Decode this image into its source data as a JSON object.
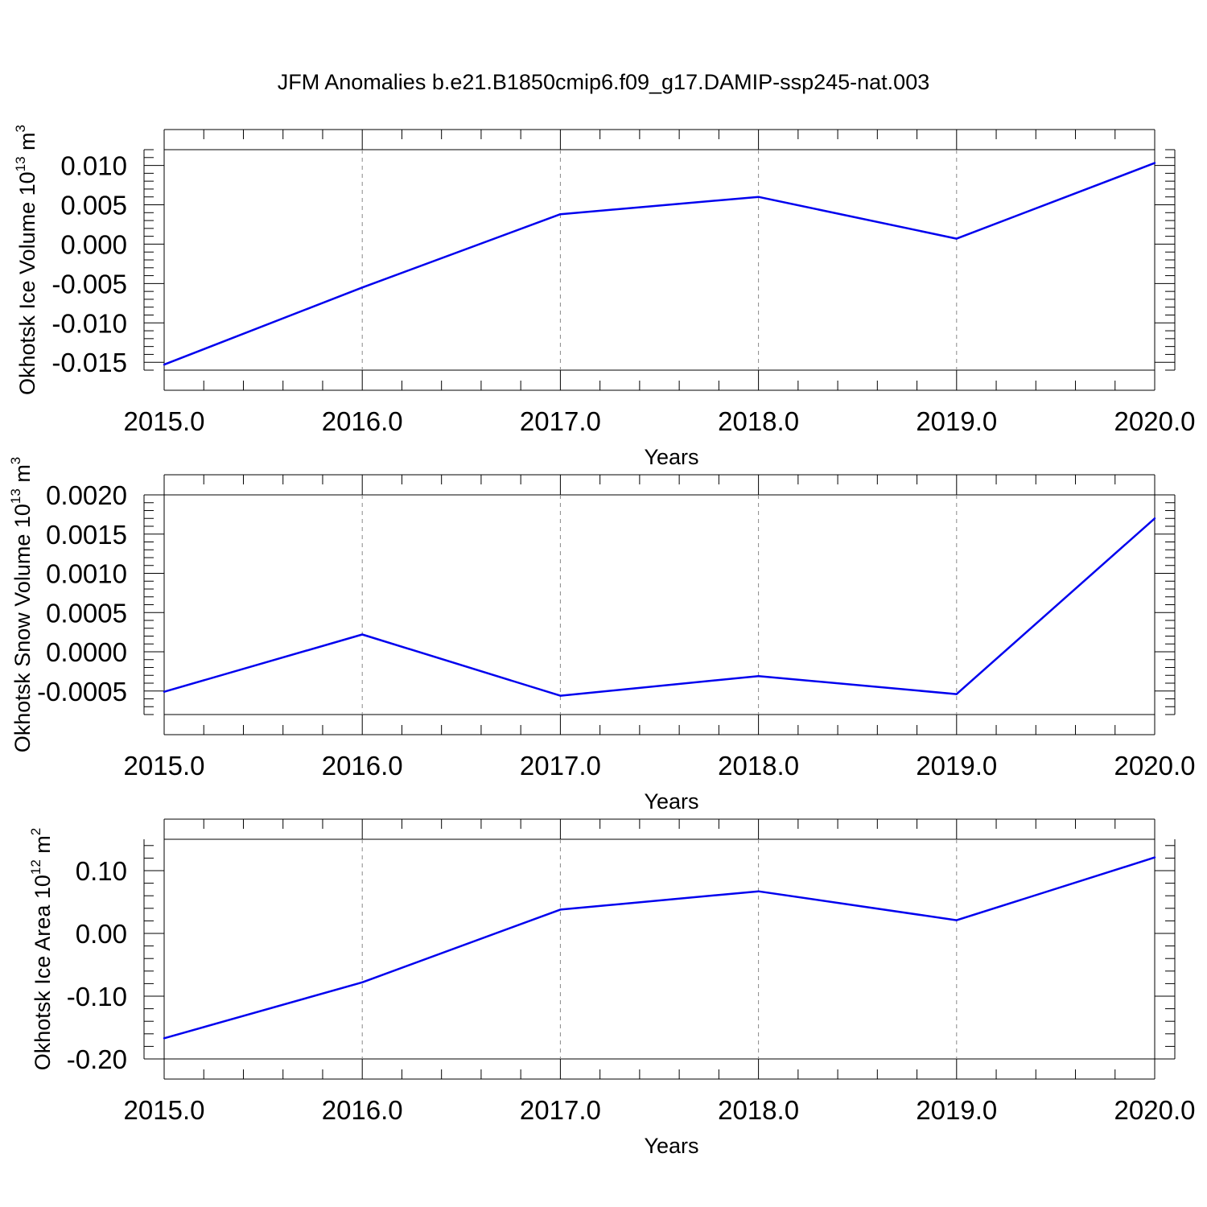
{
  "chart_data": [
    {
      "type": "line",
      "title": "JFM Anomalies b.e21.B1850cmip6.f09_g17.DAMIP-ssp245-nat.003",
      "xlabel": "Years",
      "ylabel": "Okhotsk Ice Volume 10",
      "ylabel_exp": "13",
      "ylabel_unit": " m",
      "ylabel_unit_exp": "3",
      "x": [
        2015,
        2016,
        2017,
        2018,
        2019,
        2020
      ],
      "x_tick_labels": [
        "2015.0",
        "2016.0",
        "2017.0",
        "2018.0",
        "2019.0",
        "2020.0"
      ],
      "xlim": [
        2015,
        2020
      ],
      "series": [
        {
          "color": "#0000ee",
          "values": [
            -0.0153,
            -0.0055,
            0.0038,
            0.006,
            0.0007,
            0.0103
          ]
        }
      ],
      "ylim": [
        -0.016,
        0.012
      ],
      "y_ticks": [
        -0.015,
        -0.01,
        -0.005,
        0.0,
        0.005,
        0.01
      ],
      "y_tick_labels": [
        "-0.015",
        "-0.010",
        "-0.005",
        "0.000",
        "0.005",
        "0.010"
      ],
      "y_minor_step": 0.001,
      "x_grid": "dashed-vertical"
    },
    {
      "type": "line",
      "xlabel": "Years",
      "ylabel": "Okhotsk Snow Volume 10",
      "ylabel_exp": "13",
      "ylabel_unit": " m",
      "ylabel_unit_exp": "3",
      "x": [
        2015,
        2016,
        2017,
        2018,
        2019,
        2020
      ],
      "x_tick_labels": [
        "2015.0",
        "2016.0",
        "2017.0",
        "2018.0",
        "2019.0",
        "2020.0"
      ],
      "xlim": [
        2015,
        2020
      ],
      "series": [
        {
          "color": "#0000ee",
          "values": [
            -0.00051,
            0.00022,
            -0.00056,
            -0.00031,
            -0.00054,
            0.0017
          ]
        }
      ],
      "ylim": [
        -0.0008,
        0.002
      ],
      "y_ticks": [
        -0.0005,
        0.0,
        0.0005,
        0.001,
        0.0015,
        0.002
      ],
      "y_tick_labels": [
        "-0.0005",
        "0.0000",
        "0.0005",
        "0.0010",
        "0.0015",
        "0.0020"
      ],
      "y_minor_step": 0.0001,
      "x_grid": "dashed-vertical"
    },
    {
      "type": "line",
      "xlabel": "Years",
      "ylabel": "Okhotsk Ice Area 10",
      "ylabel_exp": "12",
      "ylabel_unit": " m",
      "ylabel_unit_exp": "2",
      "x": [
        2015,
        2016,
        2017,
        2018,
        2019,
        2020
      ],
      "x_tick_labels": [
        "2015.0",
        "2016.0",
        "2017.0",
        "2018.0",
        "2019.0",
        "2020.0"
      ],
      "xlim": [
        2015,
        2020
      ],
      "series": [
        {
          "color": "#0000ee",
          "values": [
            -0.167,
            -0.078,
            0.038,
            0.067,
            0.021,
            0.121
          ]
        }
      ],
      "ylim": [
        -0.2,
        0.15
      ],
      "y_ticks": [
        -0.2,
        -0.1,
        0.0,
        0.1
      ],
      "y_tick_labels": [
        "-0.20",
        "-0.10",
        "0.00",
        "0.10"
      ],
      "y_minor_step": 0.02,
      "x_grid": "dashed-vertical"
    }
  ]
}
